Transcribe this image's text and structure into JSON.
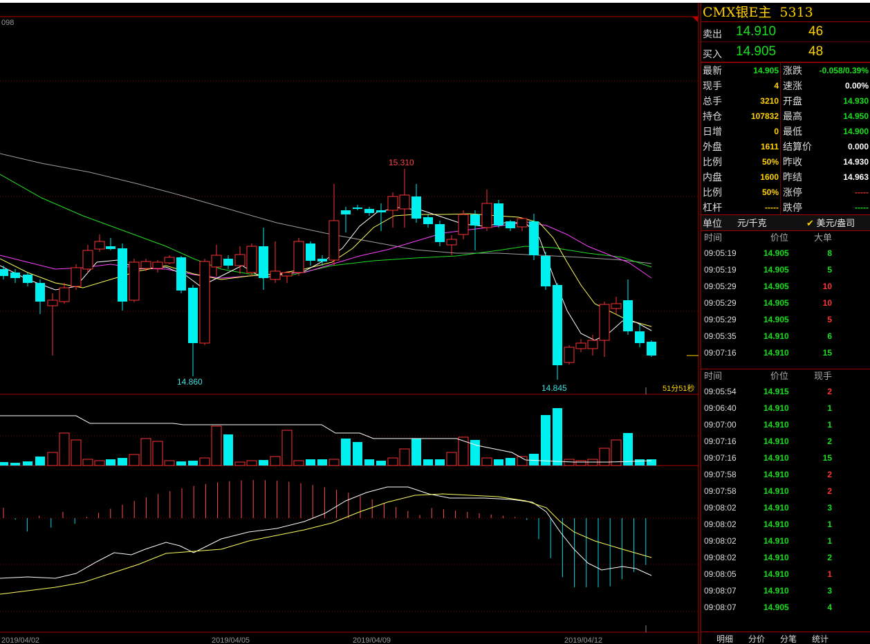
{
  "chart": {
    "top_left_value": "098",
    "high_label": "15.310",
    "low_left_label": "14.860",
    "low_right_label": "14.845",
    "timer": "51分51秒",
    "dates": [
      "2019/04/02",
      "2019/04/05",
      "2019/04/09",
      "2019/04/12"
    ],
    "colors": {
      "up": "#ff3232",
      "down": "#00f0f0",
      "grid": "#8a0000",
      "ma1": "#ffffff",
      "ma2": "#ffff60",
      "ma3": "#ff40ff",
      "ma4": "#22e022",
      "ma5": "#a0a0a0"
    }
  },
  "quote": {
    "title": "CMX银E主",
    "code": "5313",
    "sell_label": "卖出",
    "sell_price": "14.910",
    "sell_vol": "46",
    "buy_label": "买入",
    "buy_price": "14.905",
    "buy_vol": "48",
    "fields": [
      {
        "l1": "最新",
        "v1": "14.905",
        "c1": "g",
        "l2": "涨跌",
        "v2": "-0.058/0.39%",
        "c2": "g"
      },
      {
        "l1": "现手",
        "v1": "4",
        "c1": "y",
        "l2": "速涨",
        "v2": "0.00%",
        "c2": "w"
      },
      {
        "l1": "总手",
        "v1": "3210",
        "c1": "y",
        "l2": "开盘",
        "v2": "14.930",
        "c2": "g"
      },
      {
        "l1": "持仓",
        "v1": "107832",
        "c1": "y",
        "l2": "最高",
        "v2": "14.950",
        "c2": "g"
      },
      {
        "l1": "日增",
        "v1": "0",
        "c1": "y",
        "l2": "最低",
        "v2": "14.900",
        "c2": "g"
      },
      {
        "l1": "外盘",
        "v1": "1611",
        "c1": "y",
        "l2": "结算价",
        "v2": "0.000",
        "c2": "w"
      },
      {
        "l1": "比例",
        "v1": "50%",
        "c1": "y",
        "l2": "昨收",
        "v2": "14.930",
        "c2": "w"
      },
      {
        "l1": "内盘",
        "v1": "1600",
        "c1": "y",
        "l2": "昨结",
        "v2": "14.963",
        "c2": "w"
      },
      {
        "l1": "比例",
        "v1": "50%",
        "c1": "y",
        "l2": "涨停",
        "v2": "-----",
        "c2": "d"
      },
      {
        "l1": "杠杆",
        "v1": "-----",
        "c1": "y",
        "l2": "跌停",
        "v2": "-----",
        "c2": "g"
      }
    ],
    "unit_label": "单位",
    "unit_value": "元/千克",
    "unit_alt": "美元/盎司",
    "unit_alt_checked": "✔"
  },
  "big_trades": {
    "headers": [
      "时间",
      "价位",
      "大单"
    ],
    "rows": [
      {
        "t": "09:05:19",
        "p": "14.905",
        "v": "8",
        "vc": "g"
      },
      {
        "t": "09:05:19",
        "p": "14.905",
        "v": "5",
        "vc": "g"
      },
      {
        "t": "09:05:29",
        "p": "14.905",
        "v": "10",
        "vc": "r"
      },
      {
        "t": "09:05:29",
        "p": "14.905",
        "v": "10",
        "vc": "r"
      },
      {
        "t": "09:05:29",
        "p": "14.905",
        "v": "5",
        "vc": "r"
      },
      {
        "t": "09:05:35",
        "p": "14.910",
        "v": "6",
        "vc": "g"
      },
      {
        "t": "09:07:16",
        "p": "14.910",
        "v": "15",
        "vc": "g"
      }
    ]
  },
  "ticks": {
    "headers": [
      "时间",
      "价位",
      "现手"
    ],
    "rows": [
      {
        "t": "09:05:54",
        "p": "14.915",
        "v": "2",
        "vc": "r"
      },
      {
        "t": "09:06:40",
        "p": "14.910",
        "v": "1",
        "vc": "g"
      },
      {
        "t": "09:07:00",
        "p": "14.910",
        "v": "1",
        "vc": "g"
      },
      {
        "t": "09:07:16",
        "p": "14.910",
        "v": "2",
        "vc": "g"
      },
      {
        "t": "09:07:16",
        "p": "14.910",
        "v": "15",
        "vc": "g"
      },
      {
        "t": "09:07:58",
        "p": "14.910",
        "v": "2",
        "vc": "r"
      },
      {
        "t": "09:07:58",
        "p": "14.910",
        "v": "2",
        "vc": "r"
      },
      {
        "t": "09:08:02",
        "p": "14.910",
        "v": "3",
        "vc": "g"
      },
      {
        "t": "09:08:02",
        "p": "14.910",
        "v": "1",
        "vc": "g"
      },
      {
        "t": "09:08:02",
        "p": "14.910",
        "v": "1",
        "vc": "g"
      },
      {
        "t": "09:08:02",
        "p": "14.910",
        "v": "2",
        "vc": "g"
      },
      {
        "t": "09:08:05",
        "p": "14.910",
        "v": "1",
        "vc": "r"
      },
      {
        "t": "09:08:07",
        "p": "14.910",
        "v": "3",
        "vc": "g"
      },
      {
        "t": "09:08:07",
        "p": "14.905",
        "v": "4",
        "vc": "g"
      }
    ]
  },
  "tabs": [
    "明细",
    "分价",
    "分笔",
    "统计"
  ]
}
